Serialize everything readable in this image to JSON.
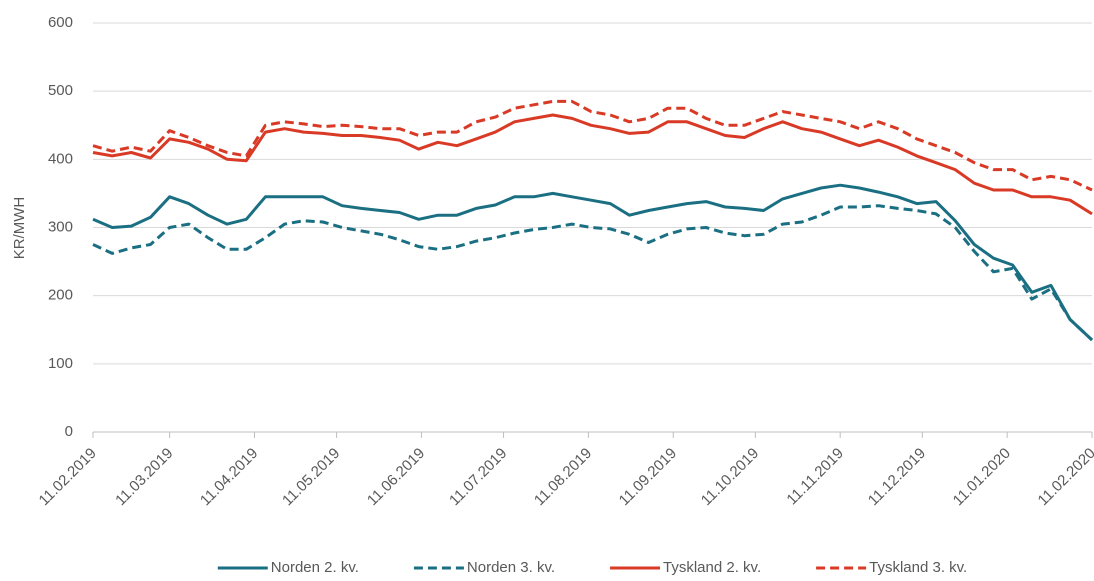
{
  "chart_data": {
    "type": "line",
    "y_label": "KR/MWH",
    "x": [
      "11.02.2019",
      "18.02.2019",
      "25.02.2019",
      "04.03.2019",
      "11.03.2019",
      "18.03.2019",
      "25.03.2019",
      "01.04.2019",
      "08.04.2019",
      "15.04.2019",
      "22.04.2019",
      "29.04.2019",
      "06.05.2019",
      "13.05.2019",
      "20.05.2019",
      "27.05.2019",
      "03.06.2019",
      "10.06.2019",
      "17.06.2019",
      "24.06.2019",
      "01.07.2019",
      "08.07.2019",
      "15.07.2019",
      "22.07.2019",
      "29.07.2019",
      "05.08.2019",
      "12.08.2019",
      "19.08.2019",
      "26.08.2019",
      "02.09.2019",
      "09.09.2019",
      "16.09.2019",
      "23.09.2019",
      "30.09.2019",
      "07.10.2019",
      "14.10.2019",
      "21.10.2019",
      "28.10.2019",
      "04.11.2019",
      "11.11.2019",
      "18.11.2019",
      "25.11.2019",
      "02.12.2019",
      "09.12.2019",
      "16.12.2019",
      "23.12.2019",
      "30.12.2019",
      "06.01.2020",
      "13.01.2020",
      "20.01.2020",
      "27.01.2020",
      "03.02.2020",
      "11.02.2020"
    ],
    "xlim": [
      "11.02.2019",
      "11.02.2020"
    ],
    "xticks": [
      "11.02.2019",
      "11.03.2019",
      "11.04.2019",
      "11.05.2019",
      "11.06.2019",
      "11.07.2019",
      "11.08.2019",
      "11.09.2019",
      "11.10.2019",
      "11.11.2019",
      "11.12.2019",
      "11.01.2020",
      "11.02.2020"
    ],
    "ylim": [
      0,
      600
    ],
    "yticks": [
      0,
      100,
      200,
      300,
      400,
      500,
      600
    ],
    "grid": true,
    "legend": "bottom",
    "series": [
      {
        "name": "Norden 2. kv.",
        "color": "#1b6f82",
        "dashed": false,
        "values": [
          312,
          300,
          302,
          315,
          345,
          335,
          318,
          305,
          312,
          345,
          345,
          345,
          345,
          332,
          328,
          325,
          322,
          312,
          318,
          318,
          328,
          333,
          345,
          345,
          350,
          345,
          340,
          335,
          318,
          325,
          330,
          335,
          338,
          330,
          328,
          325,
          342,
          350,
          358,
          362,
          358,
          352,
          345,
          335,
          338,
          310,
          275,
          255,
          245,
          205,
          215,
          165,
          135
        ]
      },
      {
        "name": "Norden 3. kv.",
        "color": "#1b6f82",
        "dashed": true,
        "values": [
          275,
          262,
          270,
          275,
          300,
          305,
          285,
          268,
          268,
          285,
          305,
          310,
          308,
          300,
          295,
          290,
          282,
          272,
          268,
          272,
          280,
          285,
          292,
          297,
          300,
          305,
          300,
          298,
          290,
          278,
          290,
          298,
          300,
          292,
          288,
          290,
          305,
          308,
          318,
          330,
          330,
          332,
          328,
          325,
          320,
          300,
          265,
          235,
          240,
          195,
          210,
          165,
          135
        ]
      },
      {
        "name": "Tyskland 2. kv.",
        "color": "#d93a26",
        "dashed": false,
        "values": [
          410,
          405,
          410,
          402,
          430,
          425,
          415,
          400,
          398,
          440,
          445,
          440,
          438,
          435,
          435,
          432,
          428,
          415,
          425,
          420,
          430,
          440,
          455,
          460,
          465,
          460,
          450,
          445,
          438,
          440,
          455,
          455,
          445,
          435,
          432,
          445,
          455,
          445,
          440,
          430,
          420,
          428,
          418,
          405,
          395,
          385,
          365,
          355,
          355,
          345,
          345,
          340,
          320
        ]
      },
      {
        "name": "Tyskland 3. kv.",
        "color": "#d93a26",
        "dashed": true,
        "values": [
          420,
          412,
          418,
          412,
          442,
          432,
          420,
          410,
          405,
          450,
          455,
          452,
          448,
          450,
          448,
          445,
          445,
          435,
          440,
          440,
          455,
          462,
          475,
          480,
          485,
          485,
          470,
          465,
          455,
          460,
          475,
          475,
          460,
          450,
          450,
          460,
          470,
          465,
          460,
          455,
          445,
          455,
          445,
          430,
          420,
          410,
          395,
          385,
          385,
          370,
          375,
          370,
          355
        ]
      }
    ]
  }
}
